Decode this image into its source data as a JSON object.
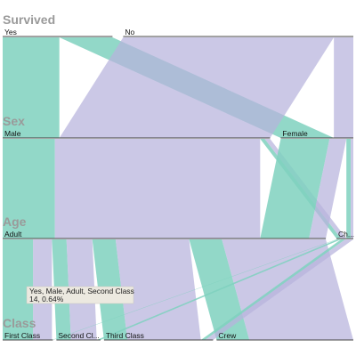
{
  "chart_data": {
    "type": "parallel-sets",
    "title": "",
    "dimensions": [
      {
        "name": "Survived",
        "categories": [
          "Yes",
          "No"
        ],
        "category_labels": [
          "Yes",
          "No"
        ]
      },
      {
        "name": "Sex",
        "categories": [
          "Male",
          "Female"
        ],
        "category_labels": [
          "Male",
          "Female"
        ]
      },
      {
        "name": "Age",
        "categories": [
          "Adult",
          "Child"
        ],
        "category_labels": [
          "Adult",
          "Ch..."
        ]
      },
      {
        "name": "Class",
        "categories": [
          "First Class",
          "Second Class",
          "Third Class",
          "Crew"
        ],
        "category_labels": [
          "First Class",
          "Second Cl...",
          "Third Class",
          "Crew"
        ]
      }
    ],
    "color_by": "Survived",
    "colors": {
      "Yes": "#7fd1be",
      "No": "#b7b3dc"
    },
    "records": [
      {
        "survived": "Yes",
        "sex": "Male",
        "age": "Adult",
        "class": "First Class",
        "count": 57
      },
      {
        "survived": "Yes",
        "sex": "Male",
        "age": "Adult",
        "class": "Second Class",
        "count": 14
      },
      {
        "survived": "Yes",
        "sex": "Male",
        "age": "Adult",
        "class": "Third Class",
        "count": 75
      },
      {
        "survived": "Yes",
        "sex": "Male",
        "age": "Adult",
        "class": "Crew",
        "count": 192
      },
      {
        "survived": "Yes",
        "sex": "Male",
        "age": "Child",
        "class": "First Class",
        "count": 5
      },
      {
        "survived": "Yes",
        "sex": "Male",
        "age": "Child",
        "class": "Second Class",
        "count": 11
      },
      {
        "survived": "Yes",
        "sex": "Male",
        "age": "Child",
        "class": "Third Class",
        "count": 13
      },
      {
        "survived": "Yes",
        "sex": "Female",
        "age": "Adult",
        "class": "First Class",
        "count": 140
      },
      {
        "survived": "Yes",
        "sex": "Female",
        "age": "Adult",
        "class": "Second Class",
        "count": 80
      },
      {
        "survived": "Yes",
        "sex": "Female",
        "age": "Adult",
        "class": "Third Class",
        "count": 76
      },
      {
        "survived": "Yes",
        "sex": "Female",
        "age": "Adult",
        "class": "Crew",
        "count": 20
      },
      {
        "survived": "Yes",
        "sex": "Female",
        "age": "Child",
        "class": "First Class",
        "count": 1
      },
      {
        "survived": "Yes",
        "sex": "Female",
        "age": "Child",
        "class": "Second Class",
        "count": 13
      },
      {
        "survived": "Yes",
        "sex": "Female",
        "age": "Child",
        "class": "Third Class",
        "count": 14
      },
      {
        "survived": "No",
        "sex": "Male",
        "age": "Adult",
        "class": "First Class",
        "count": 118
      },
      {
        "survived": "No",
        "sex": "Male",
        "age": "Adult",
        "class": "Second Class",
        "count": 154
      },
      {
        "survived": "No",
        "sex": "Male",
        "age": "Adult",
        "class": "Third Class",
        "count": 387
      },
      {
        "survived": "No",
        "sex": "Male",
        "age": "Adult",
        "class": "Crew",
        "count": 670
      },
      {
        "survived": "No",
        "sex": "Male",
        "age": "Child",
        "class": "Third Class",
        "count": 35
      },
      {
        "survived": "No",
        "sex": "Female",
        "age": "Adult",
        "class": "First Class",
        "count": 4
      },
      {
        "survived": "No",
        "sex": "Female",
        "age": "Adult",
        "class": "Second Class",
        "count": 13
      },
      {
        "survived": "No",
        "sex": "Female",
        "age": "Adult",
        "class": "Third Class",
        "count": 89
      },
      {
        "survived": "No",
        "sex": "Female",
        "age": "Adult",
        "class": "Crew",
        "count": 3
      },
      {
        "survived": "No",
        "sex": "Female",
        "age": "Child",
        "class": "Third Class",
        "count": 17
      }
    ],
    "tooltip": {
      "line1": "Yes, Male, Adult, Second Class",
      "line2": "14, 0.64%"
    }
  }
}
